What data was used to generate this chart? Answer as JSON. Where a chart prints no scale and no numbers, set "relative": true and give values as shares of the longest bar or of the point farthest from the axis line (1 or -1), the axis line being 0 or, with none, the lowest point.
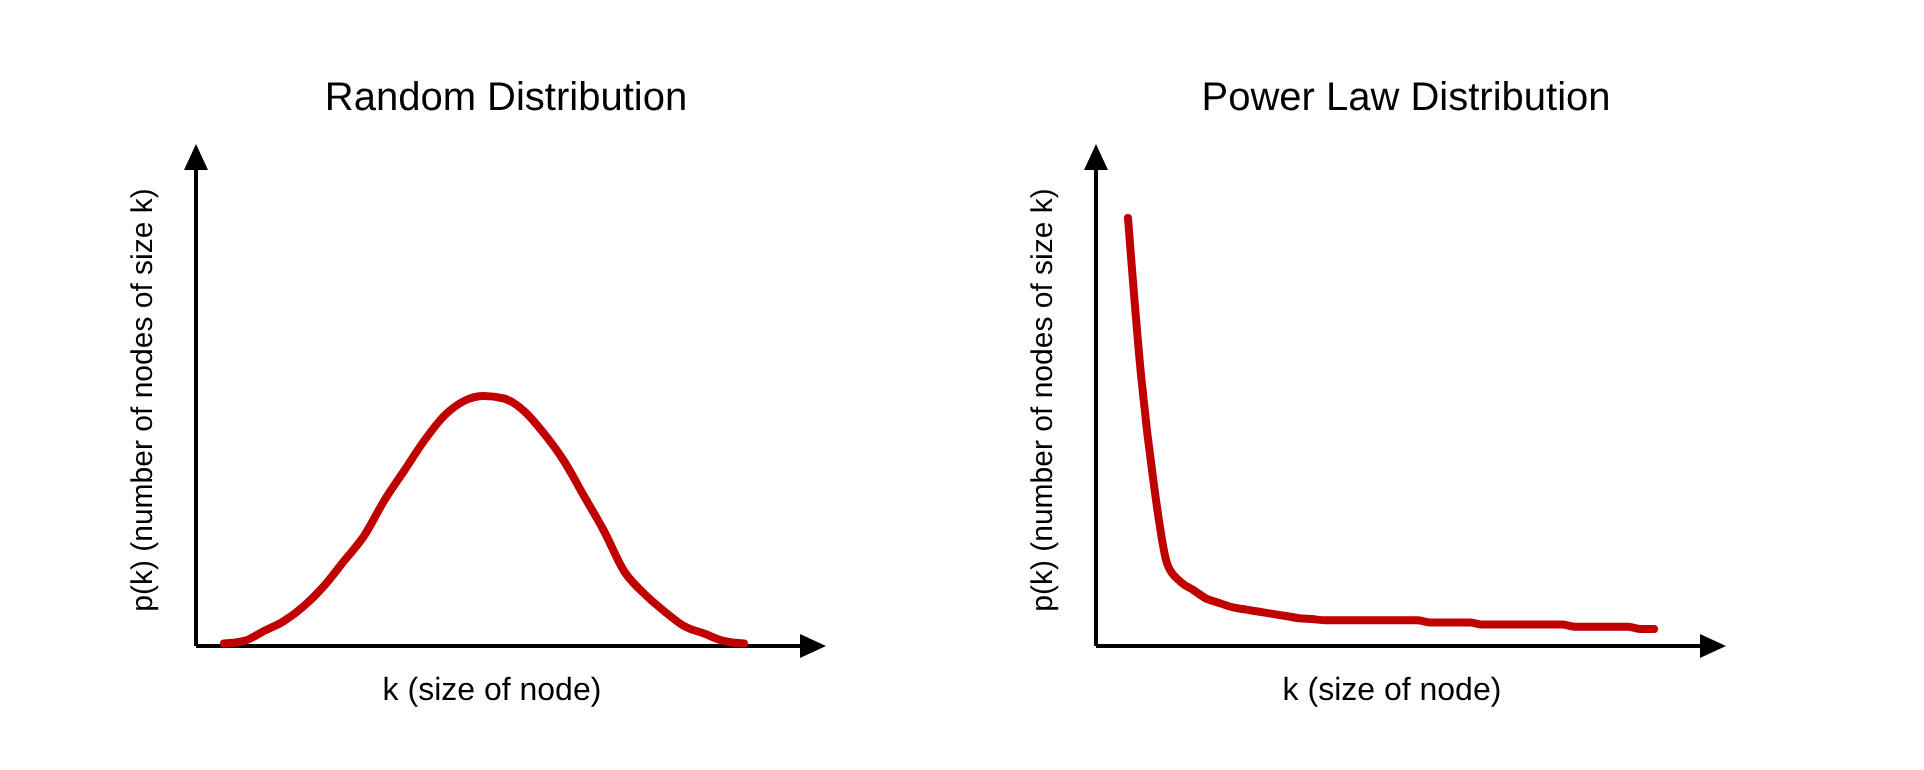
{
  "chart_data": [
    {
      "type": "line",
      "title": "Random Distribution",
      "xlabel": "k (size of node)",
      "ylabel": "p(k) (number of nodes of size k)",
      "relative": true,
      "categories": [
        null,
        null,
        null,
        null,
        null,
        null,
        null,
        null,
        null,
        null,
        null,
        null,
        null,
        null,
        null,
        null,
        null,
        null,
        null,
        null,
        null,
        null,
        null,
        null,
        null,
        null,
        null
      ],
      "series": [
        {
          "color": "#c00000",
          "values": [
            0.01,
            0.02,
            0.06,
            0.1,
            0.16,
            0.24,
            0.34,
            0.44,
            0.58,
            0.7,
            0.82,
            0.92,
            0.98,
            1,
            0.99,
            0.94,
            0.85,
            0.74,
            0.6,
            0.46,
            0.3,
            0.21,
            0.14,
            0.08,
            0.05,
            0.02,
            0.01
          ]
        }
      ]
    },
    {
      "type": "line",
      "title": "Power Law Distribution",
      "xlabel": "k (size of node)",
      "ylabel": "p(k) (number of nodes of size k)",
      "relative": true,
      "categories": [
        null,
        null,
        null,
        null,
        null,
        null,
        null,
        null,
        null,
        null,
        null,
        null,
        null,
        null,
        null,
        null,
        null,
        null,
        null,
        null,
        null,
        null,
        null,
        null,
        null,
        null,
        null,
        null,
        null,
        null,
        null,
        null,
        null,
        null,
        null,
        null,
        null,
        null,
        null,
        null,
        null
      ],
      "series": [
        {
          "color": "#c00000",
          "values": [
            1,
            0.63,
            0.37,
            0.19,
            0.15,
            0.13,
            0.11,
            0.1,
            0.09,
            0.085,
            0.08,
            0.075,
            0.07,
            0.065,
            0.063,
            0.06,
            0.06,
            0.06,
            0.06,
            0.06,
            0.06,
            0.06,
            0.06,
            0.055,
            0.055,
            0.055,
            0.055,
            0.05,
            0.05,
            0.05,
            0.05,
            0.05,
            0.05,
            0.05,
            0.045,
            0.045,
            0.045,
            0.045,
            0.045,
            0.04,
            0.04
          ]
        }
      ]
    }
  ]
}
